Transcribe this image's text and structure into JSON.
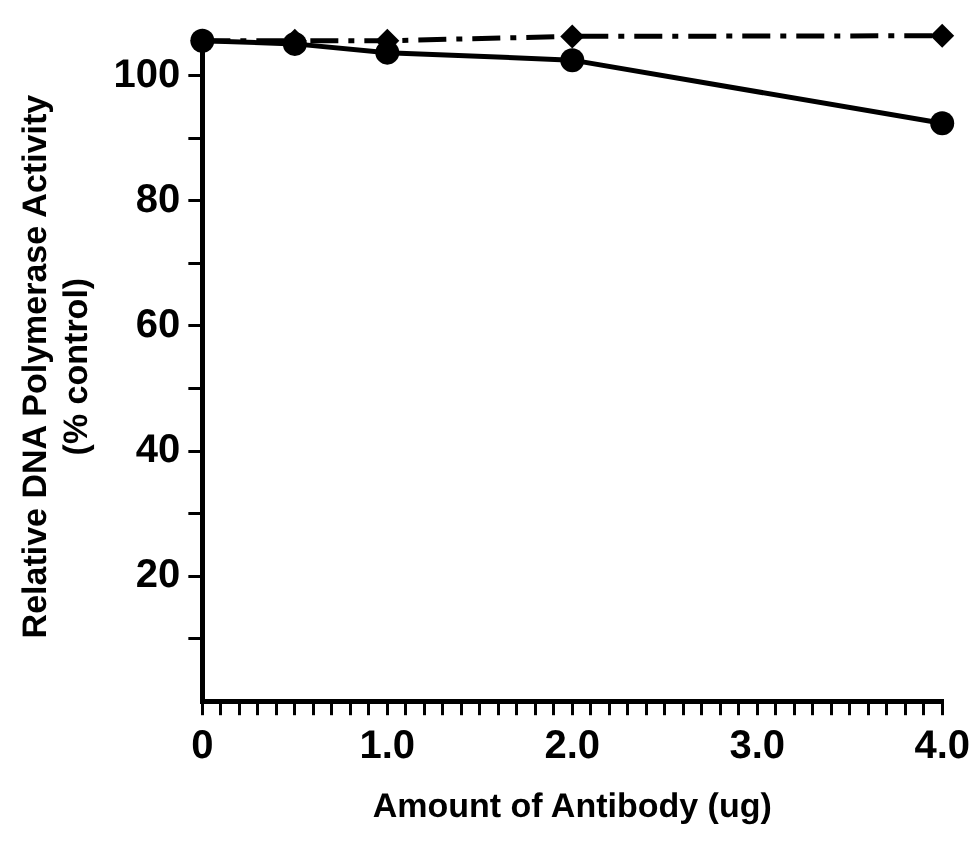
{
  "chart_data": {
    "type": "line",
    "xlabel": "Amount of Antibody (ug)",
    "ylabel": "Relative DNA Polymerase Activity\n(% control)",
    "x": [
      0,
      0.5,
      1,
      2,
      4
    ],
    "series": [
      {
        "color": "#000000",
        "marker": "circle",
        "line_style": "solid",
        "values": [
          105.6,
          105.1,
          103.7,
          102.5,
          92.4
        ]
      },
      {
        "color": "#000000",
        "marker": "diamond",
        "line_style": "dashed",
        "values": [
          105.6,
          105.6,
          105.6,
          106.3,
          106.4
        ]
      }
    ],
    "xlim": [
      0,
      4
    ],
    "xticks": [
      {
        "value": 0,
        "label": "0"
      },
      {
        "value": 0.1,
        "label": null
      },
      {
        "value": 0.2,
        "label": null
      },
      {
        "value": 0.3,
        "label": null
      },
      {
        "value": 0.4,
        "label": null
      },
      {
        "value": 0.5,
        "label": null
      },
      {
        "value": 0.6,
        "label": null
      },
      {
        "value": 0.7,
        "label": null
      },
      {
        "value": 0.8,
        "label": null
      },
      {
        "value": 0.9,
        "label": null
      },
      {
        "value": 1,
        "label": "1.0"
      },
      {
        "value": 1.1,
        "label": null
      },
      {
        "value": 1.2,
        "label": null
      },
      {
        "value": 1.3,
        "label": null
      },
      {
        "value": 1.4,
        "label": null
      },
      {
        "value": 1.5,
        "label": null
      },
      {
        "value": 1.6,
        "label": null
      },
      {
        "value": 1.7,
        "label": null
      },
      {
        "value": 1.8,
        "label": null
      },
      {
        "value": 1.9,
        "label": null
      },
      {
        "value": 2,
        "label": "2.0"
      },
      {
        "value": 2.1,
        "label": null
      },
      {
        "value": 2.2,
        "label": null
      },
      {
        "value": 2.3,
        "label": null
      },
      {
        "value": 2.4,
        "label": null
      },
      {
        "value": 2.5,
        "label": null
      },
      {
        "value": 2.6,
        "label": null
      },
      {
        "value": 2.7,
        "label": null
      },
      {
        "value": 2.8,
        "label": null
      },
      {
        "value": 2.9,
        "label": null
      },
      {
        "value": 3,
        "label": "3.0"
      },
      {
        "value": 3.1,
        "label": null
      },
      {
        "value": 3.2,
        "label": null
      },
      {
        "value": 3.3,
        "label": null
      },
      {
        "value": 3.4,
        "label": null
      },
      {
        "value": 3.5,
        "label": null
      },
      {
        "value": 3.6,
        "label": null
      },
      {
        "value": 3.7,
        "label": null
      },
      {
        "value": 3.8,
        "label": null
      },
      {
        "value": 3.9,
        "label": null
      },
      {
        "value": 4,
        "label": "4.0"
      }
    ],
    "ylim": [
      0,
      107
    ],
    "yticks": [
      {
        "value": 10,
        "label": null
      },
      20,
      {
        "value": 30,
        "label": null
      },
      40,
      {
        "value": 50,
        "label": null
      },
      60,
      {
        "value": 70,
        "label": null
      },
      80,
      {
        "value": 90,
        "label": null
      },
      100
    ],
    "grid": false,
    "legend": false
  }
}
